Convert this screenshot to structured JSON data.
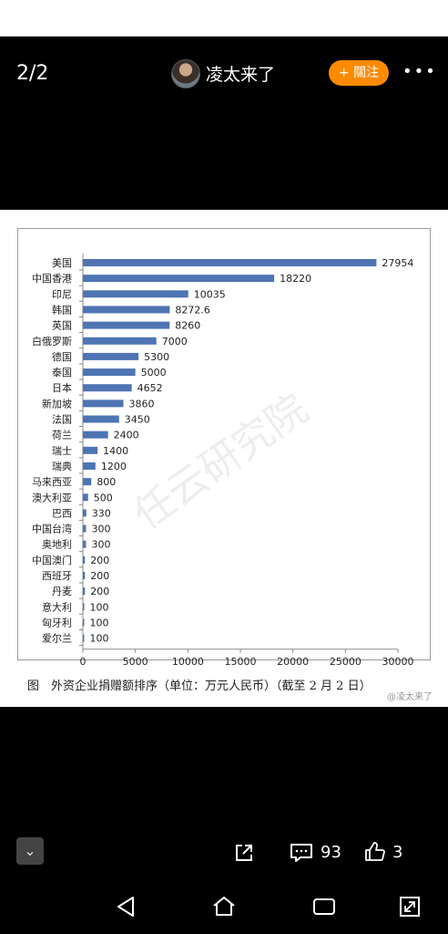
{
  "topbar": {
    "counter": "2/2",
    "username": "凌太来了",
    "follow_label": "+ 關注",
    "more_label": "•••"
  },
  "figure": {
    "caption": "图　外资企业捐赠额排序（单位：万元人民币）（截至 2 月 2 日）",
    "watermark": "任云研究院",
    "credit": "@凌太来了"
  },
  "chart_data": {
    "type": "bar",
    "orientation": "horizontal",
    "categories": [
      "美国",
      "中国香港",
      "印尼",
      "韩国",
      "英国",
      "白俄罗斯",
      "德国",
      "泰国",
      "日本",
      "新加坡",
      "法国",
      "荷兰",
      "瑞士",
      "瑞典",
      "马来西亚",
      "澳大利亚",
      "巴西",
      "中国台湾",
      "奥地利",
      "中国澳门",
      "西班牙",
      "丹麦",
      "意大利",
      "匈牙利",
      "爱尔兰"
    ],
    "values": [
      27954,
      18220,
      10035,
      8272.6,
      8260,
      7000,
      5300,
      5000,
      4652,
      3860,
      3450,
      2400,
      1400,
      1200,
      800,
      500,
      330,
      300,
      300,
      200,
      200,
      200,
      100,
      100,
      100
    ],
    "value_labels": [
      "27954",
      "18220",
      "10035",
      "8272.6",
      "8260",
      "7000",
      "5300",
      "5000",
      "4652",
      "3860",
      "3450",
      "2400",
      "1400",
      "1200",
      "800",
      "500",
      "330",
      "300",
      "300",
      "200",
      "200",
      "200",
      "100",
      "100",
      "100"
    ],
    "xlim": [
      0,
      30000
    ],
    "xticks": [
      "0",
      "5000",
      "10000",
      "15000",
      "20000",
      "25000",
      "30000"
    ],
    "bar_color": "#4f74b3",
    "grid": false
  },
  "bottombar": {
    "collapse_icon": "chevron-down-icon",
    "comments": "93",
    "likes": "3"
  }
}
